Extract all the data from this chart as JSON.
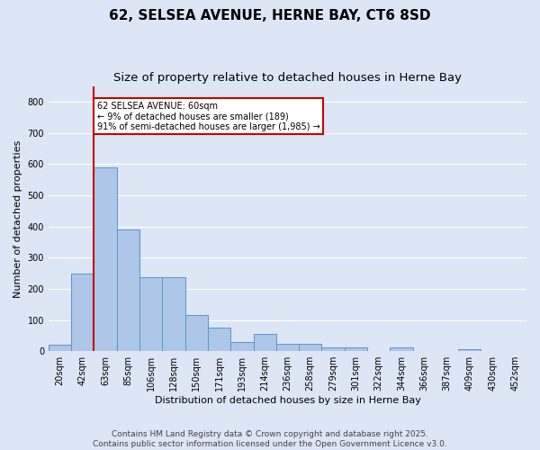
{
  "title": "62, SELSEA AVENUE, HERNE BAY, CT6 8SD",
  "subtitle": "Size of property relative to detached houses in Herne Bay",
  "xlabel": "Distribution of detached houses by size in Herne Bay",
  "ylabel": "Number of detached properties",
  "categories": [
    "20sqm",
    "42sqm",
    "63sqm",
    "85sqm",
    "106sqm",
    "128sqm",
    "150sqm",
    "171sqm",
    "193sqm",
    "214sqm",
    "236sqm",
    "258sqm",
    "279sqm",
    "301sqm",
    "322sqm",
    "344sqm",
    "366sqm",
    "387sqm",
    "409sqm",
    "430sqm",
    "452sqm"
  ],
  "bar_heights": [
    20,
    248,
    590,
    390,
    238,
    238,
    115,
    75,
    30,
    55,
    25,
    25,
    12,
    12,
    0,
    12,
    0,
    0,
    5,
    0,
    0
  ],
  "bar_color": "#aec6e8",
  "bar_edge_color": "#5a96c8",
  "background_color": "#dce6f5",
  "grid_color": "#ffffff",
  "annotation_text": "62 SELSEA AVENUE: 60sqm\n← 9% of detached houses are smaller (189)\n91% of semi-detached houses are larger (1,985) →",
  "annotation_box_color": "#ffffff",
  "annotation_box_edge": "#cc0000",
  "red_line_color": "#cc0000",
  "footer_line1": "Contains HM Land Registry data © Crown copyright and database right 2025.",
  "footer_line2": "Contains public sector information licensed under the Open Government Licence v3.0.",
  "ylim": [
    0,
    850
  ],
  "yticks": [
    0,
    100,
    200,
    300,
    400,
    500,
    600,
    700,
    800
  ],
  "title_fontsize": 11,
  "subtitle_fontsize": 9.5,
  "label_fontsize": 8,
  "tick_fontsize": 7,
  "footer_fontsize": 6.5
}
